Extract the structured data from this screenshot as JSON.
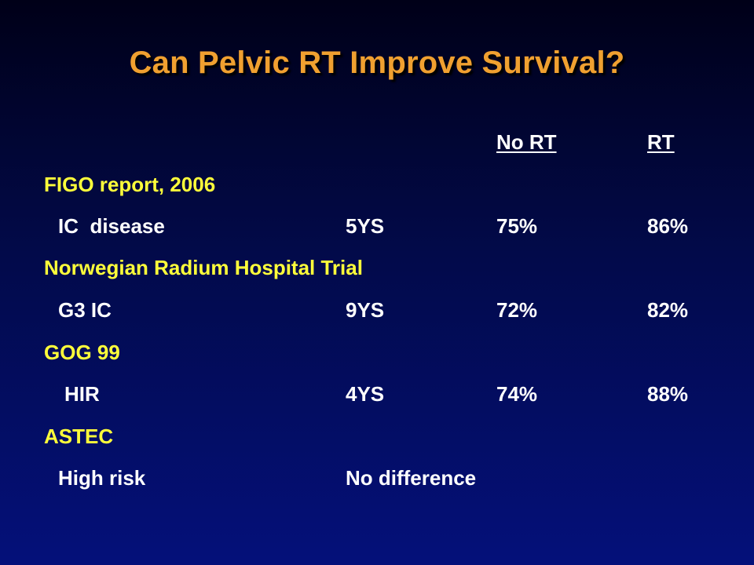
{
  "slide": {
    "title": "Can Pelvic RT Improve Survival?",
    "header": {
      "col_no_rt": "No RT",
      "col_rt": "RT"
    },
    "sections": [
      {
        "heading": "FIGO report, 2006",
        "label": "IC  disease",
        "period": "5YS",
        "no_rt": "75%",
        "rt": "86%"
      },
      {
        "heading": "Norwegian Radium Hospital Trial",
        "label": "G3 IC",
        "period": "9YS",
        "no_rt": "72%",
        "rt": "82%"
      },
      {
        "heading": "GOG 99",
        "label": "HIR",
        "period": "4YS",
        "no_rt": "74%",
        "rt": "88%"
      },
      {
        "heading": "ASTEC",
        "label": "High risk",
        "result": "No difference"
      }
    ],
    "colors": {
      "title": "#f0a030",
      "heading": "#ffff3a",
      "body": "#ffffff"
    }
  }
}
